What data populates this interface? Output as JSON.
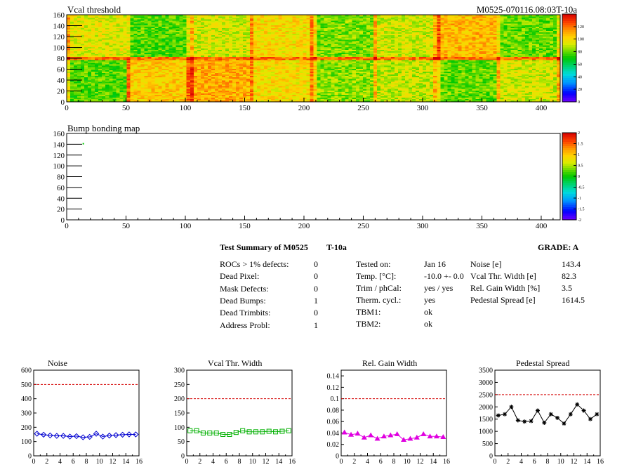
{
  "colors": {
    "limit_line": "#d40000",
    "noise": "#0000d0",
    "vcal_width": "#00b000",
    "gain_width": "#e000e0",
    "pedestal": "#000000"
  },
  "header": {
    "module_label": "M0525-070116.08:03T-10a"
  },
  "maps": [
    {
      "title": "Vcal threshold",
      "type": "heatmap",
      "x_range": [
        0,
        416
      ],
      "y_range": [
        0,
        160
      ],
      "x_ticks": [
        "0",
        "50",
        "100",
        "150",
        "200",
        "250",
        "300",
        "350",
        "400"
      ],
      "y_ticks": [
        "0",
        "20",
        "40",
        "60",
        "80",
        "100",
        "120",
        "140",
        "160"
      ],
      "colorbar_ticks": [
        "0",
        "20",
        "40",
        "60",
        "80",
        "100",
        "120"
      ],
      "colorbar_range": [
        0,
        140
      ],
      "roc_columns": 8,
      "roc_rows": 2,
      "roc_levels_top": [
        95,
        78,
        92,
        100,
        82,
        92,
        108,
        80
      ],
      "roc_levels_bottom": [
        78,
        104,
        110,
        100,
        84,
        90,
        80,
        92
      ],
      "center_band_level": 120
    },
    {
      "title": "Bump bonding map",
      "type": "heatmap",
      "x_range": [
        0,
        416
      ],
      "y_range": [
        0,
        160
      ],
      "x_ticks": [
        "0",
        "50",
        "100",
        "150",
        "200",
        "250",
        "300",
        "350",
        "400"
      ],
      "y_ticks": [
        "0",
        "20",
        "40",
        "60",
        "80",
        "100",
        "120",
        "140",
        "160"
      ],
      "colorbar_ticks": [
        "-2",
        "-1.5",
        "-1",
        "-0.5",
        "0",
        "0.5",
        "1",
        "1.5",
        "2"
      ],
      "colorbar_range": [
        -2,
        2
      ],
      "marked_pixels": [
        [
          14,
          141
        ]
      ]
    }
  ],
  "summary": {
    "title_left": "Test Summary of M0525",
    "title_mid": "T-10a",
    "grade": "GRADE:  A",
    "defects": [
      {
        "label": "ROCs > 1% defects:",
        "value": "0"
      },
      {
        "label": "Dead Pixel:",
        "value": "0"
      },
      {
        "label": "Mask Defects:",
        "value": "0"
      },
      {
        "label": "Dead Bumps:",
        "value": "1"
      },
      {
        "label": "Dead Trimbits:",
        "value": "0"
      },
      {
        "label": "Address Probl:",
        "value": "1"
      }
    ],
    "conditions": [
      {
        "label": "Tested on:",
        "value": "Jan 16"
      },
      {
        "label": "Temp. [°C]:",
        "value": "-10.0 +- 0.0"
      },
      {
        "label": "Trim / phCal:",
        "value": "yes / yes"
      },
      {
        "label": "Therm. cycl.:",
        "value": "yes"
      },
      {
        "label": "TBM1:",
        "value": "ok"
      },
      {
        "label": "TBM2:",
        "value": "ok"
      }
    ],
    "results": [
      {
        "label": "Noise [e]",
        "value": "143.4"
      },
      {
        "label": "Vcal Thr. Width [e]",
        "value": "82.3"
      },
      {
        "label": "Rel. Gain Width [%]",
        "value": "3.5"
      },
      {
        "label": "Pedestal Spread [e]",
        "value": "1614.5"
      }
    ]
  },
  "chart_data": [
    {
      "type": "scatter",
      "title": "Noise",
      "x": [
        0.5,
        1.5,
        2.5,
        3.5,
        4.5,
        5.5,
        6.5,
        7.5,
        8.5,
        9.5,
        10.5,
        11.5,
        12.5,
        13.5,
        14.5,
        15.5
      ],
      "values": [
        155,
        148,
        143,
        140,
        140,
        135,
        138,
        130,
        133,
        155,
        135,
        142,
        145,
        148,
        150,
        150
      ],
      "xlim": [
        0,
        16
      ],
      "ylim": [
        0,
        600
      ],
      "x_ticks": [
        "0",
        "2",
        "4",
        "6",
        "8",
        "10",
        "12",
        "14",
        "16"
      ],
      "y_ticks": [
        "0",
        "100",
        "200",
        "300",
        "400",
        "500",
        "600"
      ],
      "limit": 500,
      "marker": "diamond",
      "connected": false,
      "color_key": "noise"
    },
    {
      "type": "scatter",
      "title": "Vcal Thr. Width",
      "x": [
        0.5,
        1.5,
        2.5,
        3.5,
        4.5,
        5.5,
        6.5,
        7.5,
        8.5,
        9.5,
        10.5,
        11.5,
        12.5,
        13.5,
        14.5,
        15.5
      ],
      "values": [
        88,
        88,
        80,
        80,
        80,
        75,
        75,
        82,
        88,
        84,
        84,
        84,
        86,
        84,
        86,
        88
      ],
      "xlim": [
        0,
        16
      ],
      "ylim": [
        0,
        300
      ],
      "x_ticks": [
        "0",
        "2",
        "4",
        "6",
        "8",
        "10",
        "12",
        "14",
        "16"
      ],
      "y_ticks": [
        "0",
        "50",
        "100",
        "150",
        "200",
        "250",
        "300"
      ],
      "limit": 200,
      "marker": "square",
      "connected": false,
      "color_key": "vcal_width"
    },
    {
      "type": "line",
      "title": "Rel. Gain Width",
      "x": [
        0.5,
        1.5,
        2.5,
        3.5,
        4.5,
        5.5,
        6.5,
        7.5,
        8.5,
        9.5,
        10.5,
        11.5,
        12.5,
        13.5,
        14.5,
        15.5
      ],
      "values": [
        0.041,
        0.037,
        0.039,
        0.032,
        0.036,
        0.03,
        0.034,
        0.036,
        0.038,
        0.028,
        0.03,
        0.032,
        0.038,
        0.034,
        0.034,
        0.033
      ],
      "xlim": [
        0,
        16
      ],
      "ylim": [
        0,
        0.15
      ],
      "x_ticks": [
        "0",
        "2",
        "4",
        "6",
        "8",
        "10",
        "12",
        "14",
        "16"
      ],
      "y_ticks": [
        "0",
        "0.02",
        "0.04",
        "0.06",
        "0.08",
        "0.1",
        "0.12",
        "0.14"
      ],
      "limit": 0.1,
      "marker": "triangle",
      "connected": true,
      "color_key": "gain_width"
    },
    {
      "type": "line",
      "title": "Pedestal Spread",
      "x": [
        0.5,
        1.5,
        2.5,
        3.5,
        4.5,
        5.5,
        6.5,
        7.5,
        8.5,
        9.5,
        10.5,
        11.5,
        12.5,
        13.5,
        14.5,
        15.5
      ],
      "values": [
        1650,
        1700,
        2000,
        1450,
        1400,
        1420,
        1850,
        1350,
        1700,
        1550,
        1320,
        1700,
        2100,
        1850,
        1500,
        1700
      ],
      "xlim": [
        0,
        16
      ],
      "ylim": [
        0,
        3500
      ],
      "x_ticks": [
        "0",
        "2",
        "4",
        "6",
        "8",
        "10",
        "12",
        "14",
        "16"
      ],
      "y_ticks": [
        "0",
        "500",
        "1000",
        "1500",
        "2000",
        "2500",
        "3000",
        "3500"
      ],
      "limit": 2500,
      "marker": "star",
      "connected": true,
      "color_key": "pedestal"
    }
  ]
}
